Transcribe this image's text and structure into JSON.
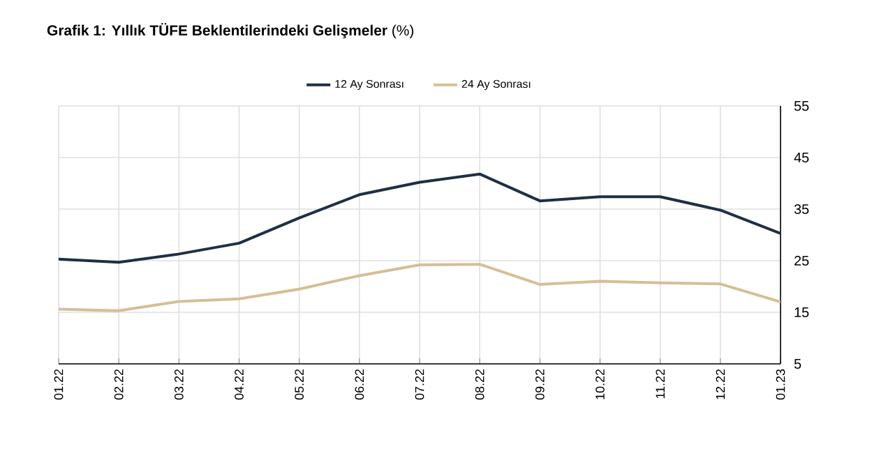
{
  "chart_data": {
    "type": "line",
    "title": "**Grafik 1: Yıllık TÜFE Beklentilerindeki Gelişmeler** (%)",
    "categories": [
      "01.22",
      "02.22",
      "03.22",
      "04.22",
      "05.22",
      "06.22",
      "07.22",
      "08.22",
      "09.22",
      "10.22",
      "11.22",
      "12.22",
      "01.23"
    ],
    "series": [
      {
        "name": "12 Ay Sonrası",
        "color": "#1f2f44",
        "values": [
          25.3,
          24.7,
          26.3,
          28.4,
          33.3,
          37.8,
          40.2,
          41.8,
          36.6,
          37.4,
          37.4,
          34.8,
          30.3
        ]
      },
      {
        "name": "24 Ay Sonrası",
        "color": "#d4bf95",
        "values": [
          15.6,
          15.3,
          17.1,
          17.6,
          19.5,
          22.1,
          24.2,
          24.3,
          20.4,
          21.0,
          20.7,
          20.5,
          17.0
        ]
      }
    ],
    "ylim": [
      5,
      55
    ],
    "yticks": [
      5,
      15,
      25,
      35,
      45,
      55
    ],
    "grid": true,
    "legend": "top",
    "marker": "none",
    "line_style": "solid"
  }
}
